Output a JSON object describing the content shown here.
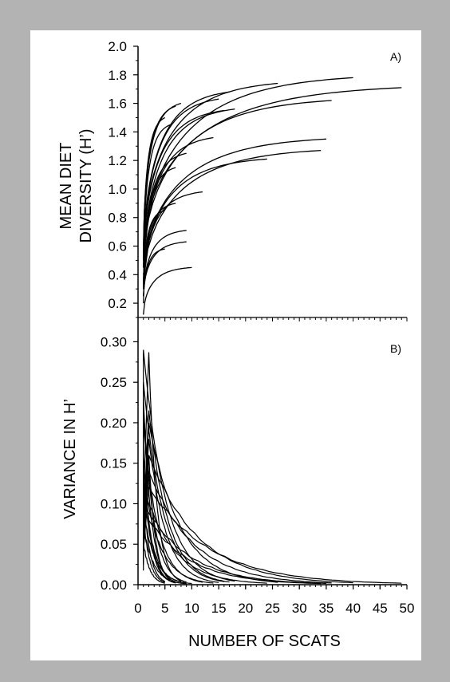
{
  "colors": {
    "frame": "#b3b3b3",
    "panel": "#ffffff",
    "ink": "#000000"
  },
  "chart_data": [
    {
      "type": "line",
      "panel_label": "A)",
      "ylabel_lines": [
        "MEAN DIET",
        "DIVERSITY (H’)"
      ],
      "xlim": [
        0,
        50
      ],
      "ylim": [
        0.1,
        2.0
      ],
      "yticks": [
        "0.2",
        "0.4",
        "0.6",
        "0.8",
        "1.0",
        "1.2",
        "1.4",
        "1.6",
        "1.8",
        "2.0"
      ],
      "series": [
        {
          "x": [
            1,
            40
          ],
          "y": [
            0.55,
            1.78
          ]
        },
        {
          "x": [
            1,
            49
          ],
          "y": [
            0.6,
            1.71
          ]
        },
        {
          "x": [
            1,
            36
          ],
          "y": [
            0.5,
            1.62
          ]
        },
        {
          "x": [
            1,
            26
          ],
          "y": [
            0.6,
            1.74
          ]
        },
        {
          "x": [
            1,
            17
          ],
          "y": [
            0.55,
            1.68
          ]
        },
        {
          "x": [
            1,
            15
          ],
          "y": [
            0.5,
            1.63
          ]
        },
        {
          "x": [
            1,
            18
          ],
          "y": [
            0.45,
            1.56
          ]
        },
        {
          "x": [
            1,
            16
          ],
          "y": [
            0.5,
            1.55
          ]
        },
        {
          "x": [
            1,
            8
          ],
          "y": [
            0.6,
            1.6
          ]
        },
        {
          "x": [
            1,
            7
          ],
          "y": [
            0.55,
            1.58
          ]
        },
        {
          "x": [
            1,
            5
          ],
          "y": [
            0.5,
            1.5
          ]
        },
        {
          "x": [
            1,
            6
          ],
          "y": [
            0.45,
            1.45
          ]
        },
        {
          "x": [
            1,
            35
          ],
          "y": [
            0.4,
            1.35
          ]
        },
        {
          "x": [
            1,
            34
          ],
          "y": [
            0.35,
            1.27
          ]
        },
        {
          "x": [
            1,
            24
          ],
          "y": [
            0.35,
            1.21
          ]
        },
        {
          "x": [
            1,
            14
          ],
          "y": [
            0.35,
            1.36
          ]
        },
        {
          "x": [
            1,
            9
          ],
          "y": [
            0.35,
            1.25
          ]
        },
        {
          "x": [
            1,
            7
          ],
          "y": [
            0.3,
            1.15
          ]
        },
        {
          "x": [
            1,
            12
          ],
          "y": [
            0.3,
            0.98
          ]
        },
        {
          "x": [
            1,
            7
          ],
          "y": [
            0.3,
            0.9
          ]
        },
        {
          "x": [
            1,
            5
          ],
          "y": [
            0.3,
            0.85
          ]
        },
        {
          "x": [
            1,
            9
          ],
          "y": [
            0.25,
            0.71
          ]
        },
        {
          "x": [
            1,
            9
          ],
          "y": [
            0.25,
            0.63
          ]
        },
        {
          "x": [
            1,
            5
          ],
          "y": [
            0.2,
            0.58
          ]
        },
        {
          "x": [
            1,
            10
          ],
          "y": [
            0.12,
            0.45
          ]
        }
      ]
    },
    {
      "type": "line",
      "panel_label": "B)",
      "xlabel": "NUMBER OF SCATS",
      "ylabel": "VARIANCE IN H’",
      "xlim": [
        0,
        50
      ],
      "ylim": [
        0,
        0.33
      ],
      "xticks": [
        "0",
        "5",
        "10",
        "15",
        "20",
        "25",
        "30",
        "35",
        "40",
        "45",
        "50"
      ],
      "yticks": [
        "0.00",
        "0.05",
        "0.10",
        "0.15",
        "0.20",
        "0.25",
        "0.30"
      ],
      "series": [
        {
          "xmax": 40,
          "peak_x": 2,
          "peak_y": 0.16
        },
        {
          "xmax": 49,
          "peak_x": 2,
          "peak_y": 0.12
        },
        {
          "xmax": 36,
          "peak_x": 2,
          "peak_y": 0.14
        },
        {
          "xmax": 26,
          "peak_x": 2,
          "peak_y": 0.2
        },
        {
          "xmax": 17,
          "peak_x": 2,
          "peak_y": 0.215
        },
        {
          "xmax": 15,
          "peak_x": 2,
          "peak_y": 0.18
        },
        {
          "xmax": 18,
          "peak_x": 1,
          "peak_y": 0.29
        },
        {
          "xmax": 16,
          "peak_x": 1,
          "peak_y": 0.25
        },
        {
          "xmax": 8,
          "peak_x": 2,
          "peak_y": 0.287
        },
        {
          "xmax": 7,
          "peak_x": 1,
          "peak_y": 0.23
        },
        {
          "xmax": 5,
          "peak_x": 1,
          "peak_y": 0.11
        },
        {
          "xmax": 6,
          "peak_x": 2,
          "peak_y": 0.16
        },
        {
          "xmax": 35,
          "peak_x": 1,
          "peak_y": 0.1
        },
        {
          "xmax": 34,
          "peak_x": 1,
          "peak_y": 0.09
        },
        {
          "xmax": 24,
          "peak_x": 1,
          "peak_y": 0.12
        },
        {
          "xmax": 14,
          "peak_x": 1,
          "peak_y": 0.13
        },
        {
          "xmax": 9,
          "peak_x": 1,
          "peak_y": 0.22
        },
        {
          "xmax": 7,
          "peak_x": 1,
          "peak_y": 0.16
        },
        {
          "xmax": 12,
          "peak_x": 1,
          "peak_y": 0.2
        },
        {
          "xmax": 7,
          "peak_x": 1,
          "peak_y": 0.14
        },
        {
          "xmax": 5,
          "peak_x": 1,
          "peak_y": 0.08
        },
        {
          "xmax": 9,
          "peak_x": 1,
          "peak_y": 0.12
        },
        {
          "xmax": 9,
          "peak_x": 1,
          "peak_y": 0.07
        },
        {
          "xmax": 5,
          "peak_x": 1,
          "peak_y": 0.05
        },
        {
          "xmax": 10,
          "peak_x": 1,
          "peak_y": 0.09
        }
      ]
    }
  ]
}
